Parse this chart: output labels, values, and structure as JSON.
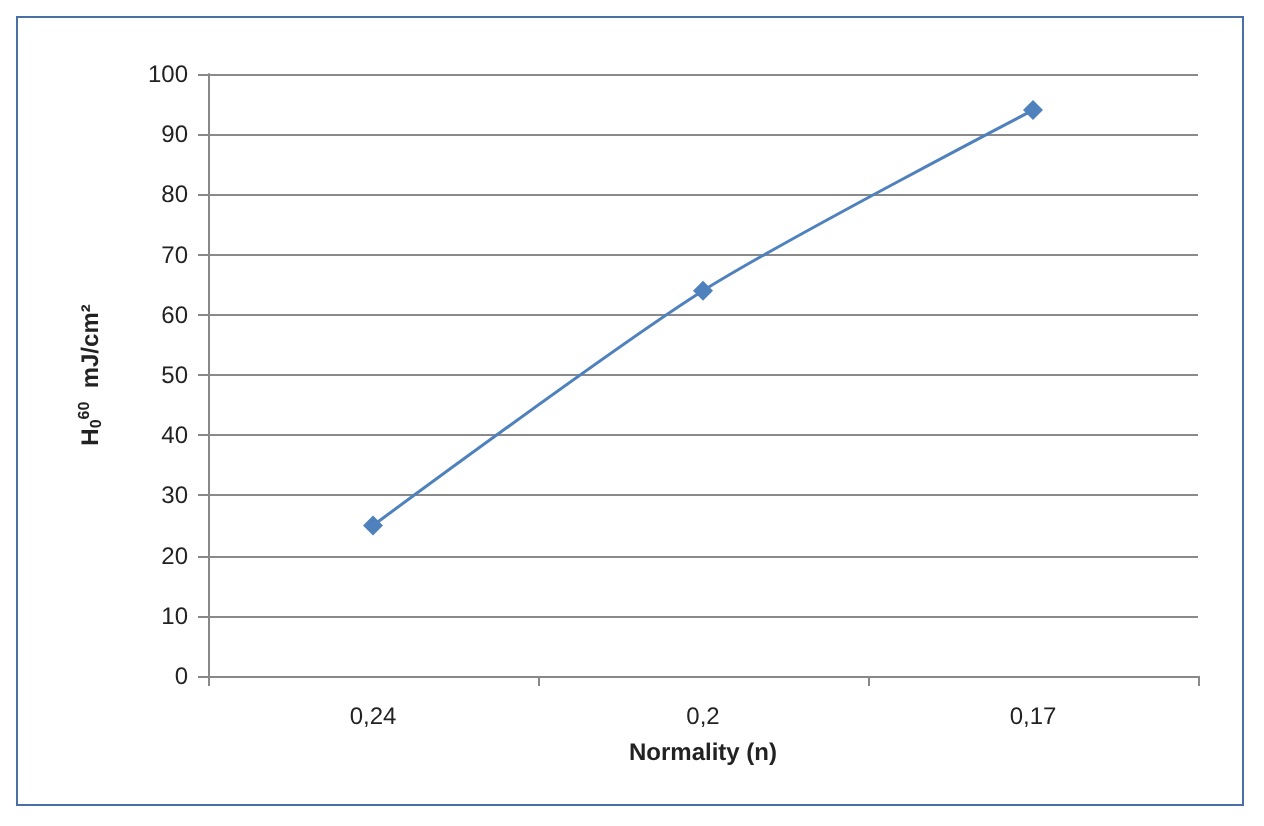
{
  "chart_data": {
    "type": "line",
    "xlabel": "Normality (n)",
    "ylabel": "H$_{0}$$^{60}$  mJ/cm²",
    "categories": [
      "0,24",
      "0,2",
      "0,17"
    ],
    "series": [
      {
        "color": "#4f81bd",
        "values": [
          25,
          64,
          94
        ]
      }
    ],
    "ylim": [
      0,
      100
    ],
    "yticks": [
      0,
      10,
      20,
      30,
      40,
      50,
      60,
      70,
      80,
      90,
      100
    ],
    "grid": "y",
    "marker": "diamond",
    "line_style": "solid"
  }
}
